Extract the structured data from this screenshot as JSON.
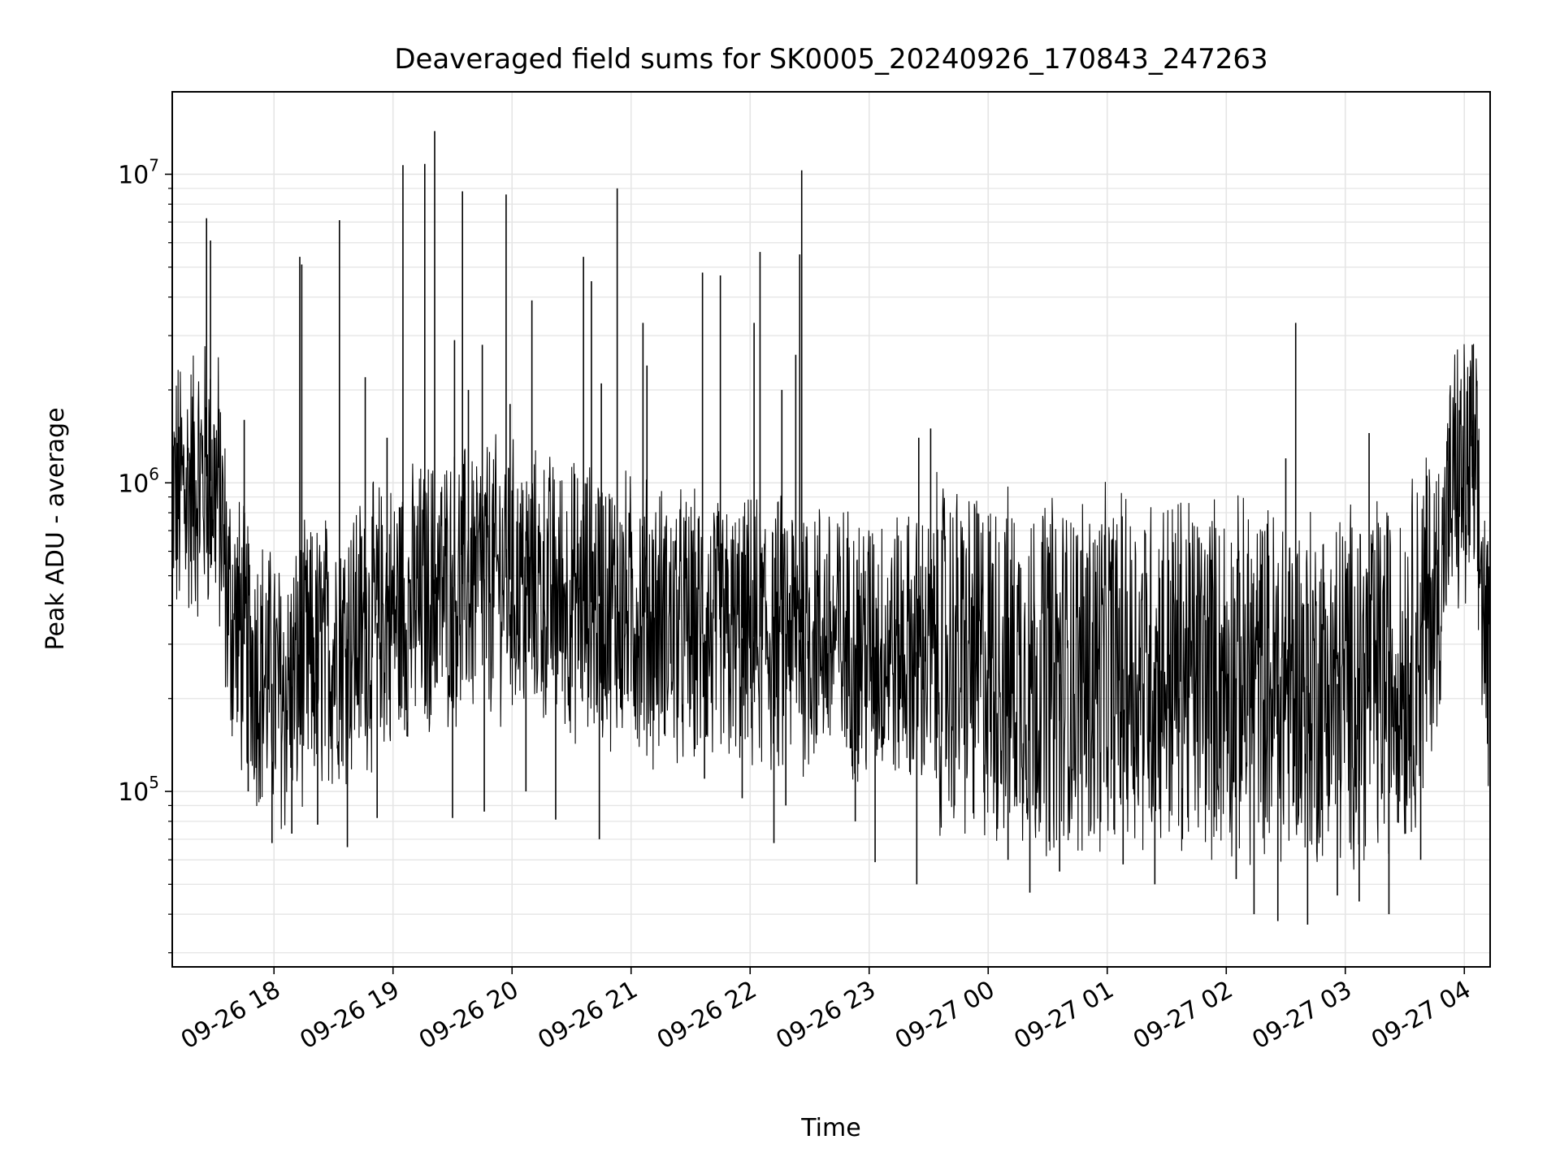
{
  "chart_data": {
    "type": "line",
    "title": "Deaveraged field sums for SK0005_20240926_170843_247263",
    "xlabel": "Time",
    "ylabel": "Peak ADU - average",
    "yscale": "log",
    "ylim": [
      27000,
      18500000
    ],
    "xlim": [
      "2024-09-26T17:08:43",
      "2024-09-27T04:13:00"
    ],
    "grid": true,
    "line_color": "#000000",
    "grid_color": "#e5e5e5",
    "x_ticks": [
      {
        "t": "2024-09-26T18:00",
        "label": "09-26 18"
      },
      {
        "t": "2024-09-26T19:00",
        "label": "09-26 19"
      },
      {
        "t": "2024-09-26T20:00",
        "label": "09-26 20"
      },
      {
        "t": "2024-09-26T21:00",
        "label": "09-26 21"
      },
      {
        "t": "2024-09-26T22:00",
        "label": "09-26 22"
      },
      {
        "t": "2024-09-26T23:00",
        "label": "09-26 23"
      },
      {
        "t": "2024-09-27T00:00",
        "label": "09-27 00"
      },
      {
        "t": "2024-09-27T01:00",
        "label": "09-27 01"
      },
      {
        "t": "2024-09-27T02:00",
        "label": "09-27 02"
      },
      {
        "t": "2024-09-27T03:00",
        "label": "09-27 03"
      },
      {
        "t": "2024-09-27T04:00",
        "label": "09-27 04"
      }
    ],
    "y_ticks": [
      {
        "v": 100000,
        "base": "10",
        "exp": "5"
      },
      {
        "v": 1000000,
        "base": "10",
        "exp": "6"
      },
      {
        "v": 10000000,
        "base": "10",
        "exp": "7"
      }
    ],
    "series": [
      {
        "points": [
          [
            "2024-09-26T17:08",
            850000
          ],
          [
            "2024-09-26T17:14",
            950000
          ],
          [
            "2024-09-26T17:20",
            1000000
          ],
          [
            "2024-09-26T17:26",
            1050000
          ],
          [
            "2024-09-26T17:32",
            950000
          ],
          [
            "2024-09-26T17:37",
            400000
          ],
          [
            "2024-09-26T17:45",
            300000
          ],
          [
            "2024-09-26T17:55",
            240000
          ],
          [
            "2024-09-26T18:05",
            200000
          ],
          [
            "2024-09-26T18:15",
            250000
          ],
          [
            "2024-09-26T18:25",
            280000
          ],
          [
            "2024-09-26T18:40",
            320000
          ],
          [
            "2024-09-26T18:55",
            360000
          ],
          [
            "2024-09-26T19:10",
            400000
          ],
          [
            "2024-09-26T19:25",
            450000
          ],
          [
            "2024-09-26T19:40",
            480000
          ],
          [
            "2024-09-26T19:55",
            500000
          ],
          [
            "2024-09-26T20:10",
            450000
          ],
          [
            "2024-09-26T20:30",
            420000
          ],
          [
            "2024-09-26T20:50",
            400000
          ],
          [
            "2024-09-26T21:10",
            360000
          ],
          [
            "2024-09-26T21:30",
            330000
          ],
          [
            "2024-09-26T21:50",
            310000
          ],
          [
            "2024-09-26T22:10",
            320000
          ],
          [
            "2024-09-26T22:30",
            330000
          ],
          [
            "2024-09-26T22:50",
            300000
          ],
          [
            "2024-09-26T23:10",
            290000
          ],
          [
            "2024-09-26T23:30",
            280000
          ],
          [
            "2024-09-26T23:50",
            260000
          ],
          [
            "2024-09-27T00:10",
            250000
          ],
          [
            "2024-09-27T00:30",
            240000
          ],
          [
            "2024-09-27T00:50",
            240000
          ],
          [
            "2024-09-27T01:10",
            250000
          ],
          [
            "2024-09-27T01:30",
            250000
          ],
          [
            "2024-09-27T01:50",
            240000
          ],
          [
            "2024-09-27T02:10",
            230000
          ],
          [
            "2024-09-27T02:30",
            220000
          ],
          [
            "2024-09-27T02:50",
            220000
          ],
          [
            "2024-09-27T03:10",
            230000
          ],
          [
            "2024-09-27T03:30",
            250000
          ],
          [
            "2024-09-27T03:45",
            400000
          ],
          [
            "2024-09-27T03:55",
            1000000
          ],
          [
            "2024-09-27T04:05",
            1050000
          ],
          [
            "2024-09-27T04:13",
            200000
          ]
        ]
      }
    ],
    "spikes": [
      [
        "2024-09-26T17:26",
        7200000
      ],
      [
        "2024-09-26T17:28",
        6100000
      ],
      [
        "2024-09-26T17:45",
        1600000
      ],
      [
        "2024-09-26T18:13",
        5400000
      ],
      [
        "2024-09-26T18:14",
        5100000
      ],
      [
        "2024-09-26T18:33",
        7100000
      ],
      [
        "2024-09-26T18:46",
        2200000
      ],
      [
        "2024-09-26T18:57",
        1400000
      ],
      [
        "2024-09-26T19:05",
        10700000
      ],
      [
        "2024-09-26T19:16",
        10800000
      ],
      [
        "2024-09-26T19:21",
        13800000
      ],
      [
        "2024-09-26T19:31",
        2900000
      ],
      [
        "2024-09-26T19:35",
        8800000
      ],
      [
        "2024-09-26T19:38",
        2000000
      ],
      [
        "2024-09-26T19:45",
        2800000
      ],
      [
        "2024-09-26T19:57",
        8600000
      ],
      [
        "2024-09-26T19:59",
        1800000
      ],
      [
        "2024-09-26T20:10",
        3900000
      ],
      [
        "2024-09-26T20:36",
        5400000
      ],
      [
        "2024-09-26T20:40",
        4500000
      ],
      [
        "2024-09-26T20:45",
        2100000
      ],
      [
        "2024-09-26T20:53",
        9000000
      ],
      [
        "2024-09-26T21:06",
        3300000
      ],
      [
        "2024-09-26T21:08",
        2400000
      ],
      [
        "2024-09-26T21:36",
        4800000
      ],
      [
        "2024-09-26T21:45",
        4700000
      ],
      [
        "2024-09-26T22:02",
        3300000
      ],
      [
        "2024-09-26T22:05",
        5600000
      ],
      [
        "2024-09-26T22:16",
        2000000
      ],
      [
        "2024-09-26T22:23",
        2600000
      ],
      [
        "2024-09-26T22:25",
        5500000
      ],
      [
        "2024-09-26T22:26",
        10300000
      ],
      [
        "2024-09-26T23:25",
        1400000
      ],
      [
        "2024-09-26T23:31",
        1500000
      ],
      [
        "2024-09-27T02:30",
        1200000
      ],
      [
        "2024-09-27T02:35",
        3300000
      ],
      [
        "2024-09-27T03:12",
        1450000
      ],
      [
        "2024-09-27T04:04",
        2800000
      ]
    ],
    "dips": [
      [
        "2024-09-26T17:47",
        100000
      ],
      [
        "2024-09-26T17:59",
        68000
      ],
      [
        "2024-09-26T18:09",
        73000
      ],
      [
        "2024-09-26T18:22",
        78000
      ],
      [
        "2024-09-26T18:37",
        66000
      ],
      [
        "2024-09-26T18:52",
        82000
      ],
      [
        "2024-09-26T19:30",
        82000
      ],
      [
        "2024-09-26T19:46",
        86000
      ],
      [
        "2024-09-26T20:07",
        100000
      ],
      [
        "2024-09-26T20:22",
        81000
      ],
      [
        "2024-09-26T20:44",
        70000
      ],
      [
        "2024-09-26T21:37",
        110000
      ],
      [
        "2024-09-26T21:56",
        95000
      ],
      [
        "2024-09-26T22:12",
        68000
      ],
      [
        "2024-09-26T22:18",
        90000
      ],
      [
        "2024-09-26T22:53",
        80000
      ],
      [
        "2024-09-26T23:03",
        59000
      ],
      [
        "2024-09-26T23:24",
        50000
      ],
      [
        "2024-09-27T00:10",
        60000
      ],
      [
        "2024-09-27T00:21",
        47000
      ],
      [
        "2024-09-27T00:36",
        55000
      ],
      [
        "2024-09-27T01:08",
        58000
      ],
      [
        "2024-09-27T01:24",
        50000
      ],
      [
        "2024-09-27T02:05",
        52000
      ],
      [
        "2024-09-27T02:14",
        40000
      ],
      [
        "2024-09-27T02:26",
        38000
      ],
      [
        "2024-09-27T02:41",
        37000
      ],
      [
        "2024-09-27T02:56",
        46000
      ],
      [
        "2024-09-27T03:07",
        44000
      ],
      [
        "2024-09-27T03:22",
        40000
      ],
      [
        "2024-09-27T03:38",
        60000
      ]
    ]
  }
}
